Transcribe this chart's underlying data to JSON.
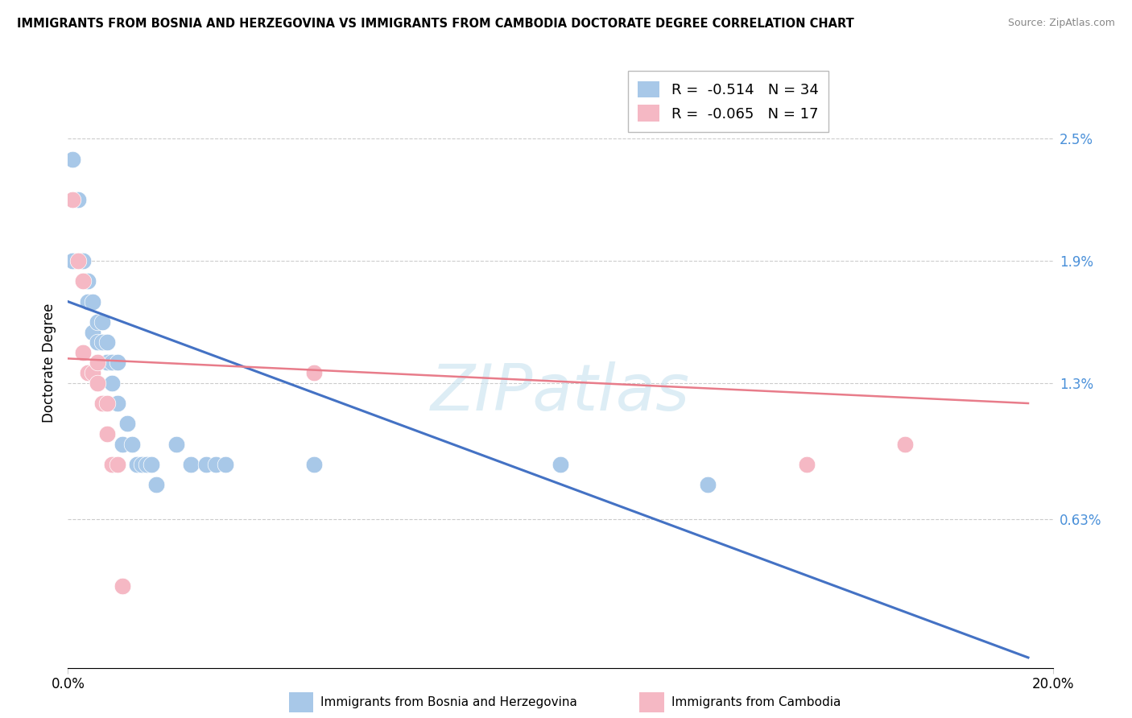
{
  "title": "IMMIGRANTS FROM BOSNIA AND HERZEGOVINA VS IMMIGRANTS FROM CAMBODIA DOCTORATE DEGREE CORRELATION CHART",
  "source": "Source: ZipAtlas.com",
  "ylabel": "Doctorate Degree",
  "yticks": [
    "0.63%",
    "1.3%",
    "1.9%",
    "2.5%"
  ],
  "ytick_vals": [
    0.0063,
    0.013,
    0.019,
    0.025
  ],
  "xrange": [
    0.0,
    0.2
  ],
  "yrange": [
    -0.001,
    0.029
  ],
  "legend1_r": "-0.514",
  "legend1_n": "34",
  "legend2_r": "-0.065",
  "legend2_n": "17",
  "blue_color": "#a8c8e8",
  "pink_color": "#f5b8c4",
  "blue_line_color": "#4472c4",
  "pink_line_color": "#e87c8a",
  "watermark": "ZIPatlas",
  "blue_line_x0": 0.0,
  "blue_line_y0": 0.017,
  "blue_line_x1": 0.195,
  "blue_line_y1": -0.0005,
  "pink_line_x0": 0.0,
  "pink_line_y0": 0.0142,
  "pink_line_x1": 0.195,
  "pink_line_y1": 0.012,
  "bosnia_x": [
    0.001,
    0.001,
    0.002,
    0.003,
    0.004,
    0.004,
    0.005,
    0.005,
    0.006,
    0.006,
    0.007,
    0.007,
    0.008,
    0.008,
    0.009,
    0.009,
    0.01,
    0.01,
    0.011,
    0.012,
    0.013,
    0.014,
    0.015,
    0.016,
    0.017,
    0.018,
    0.022,
    0.025,
    0.028,
    0.03,
    0.032,
    0.05,
    0.1,
    0.13
  ],
  "bosnia_y": [
    0.024,
    0.019,
    0.022,
    0.019,
    0.018,
    0.017,
    0.017,
    0.0155,
    0.016,
    0.015,
    0.016,
    0.015,
    0.015,
    0.014,
    0.014,
    0.013,
    0.014,
    0.012,
    0.01,
    0.011,
    0.01,
    0.009,
    0.009,
    0.009,
    0.009,
    0.008,
    0.01,
    0.009,
    0.009,
    0.009,
    0.009,
    0.009,
    0.009,
    0.008
  ],
  "cambodia_x": [
    0.001,
    0.002,
    0.003,
    0.003,
    0.004,
    0.005,
    0.006,
    0.006,
    0.007,
    0.008,
    0.008,
    0.009,
    0.01,
    0.011,
    0.05,
    0.15,
    0.17
  ],
  "cambodia_y": [
    0.022,
    0.019,
    0.018,
    0.0145,
    0.0135,
    0.0135,
    0.014,
    0.013,
    0.012,
    0.012,
    0.0105,
    0.009,
    0.009,
    0.003,
    0.0135,
    0.009,
    0.01
  ]
}
